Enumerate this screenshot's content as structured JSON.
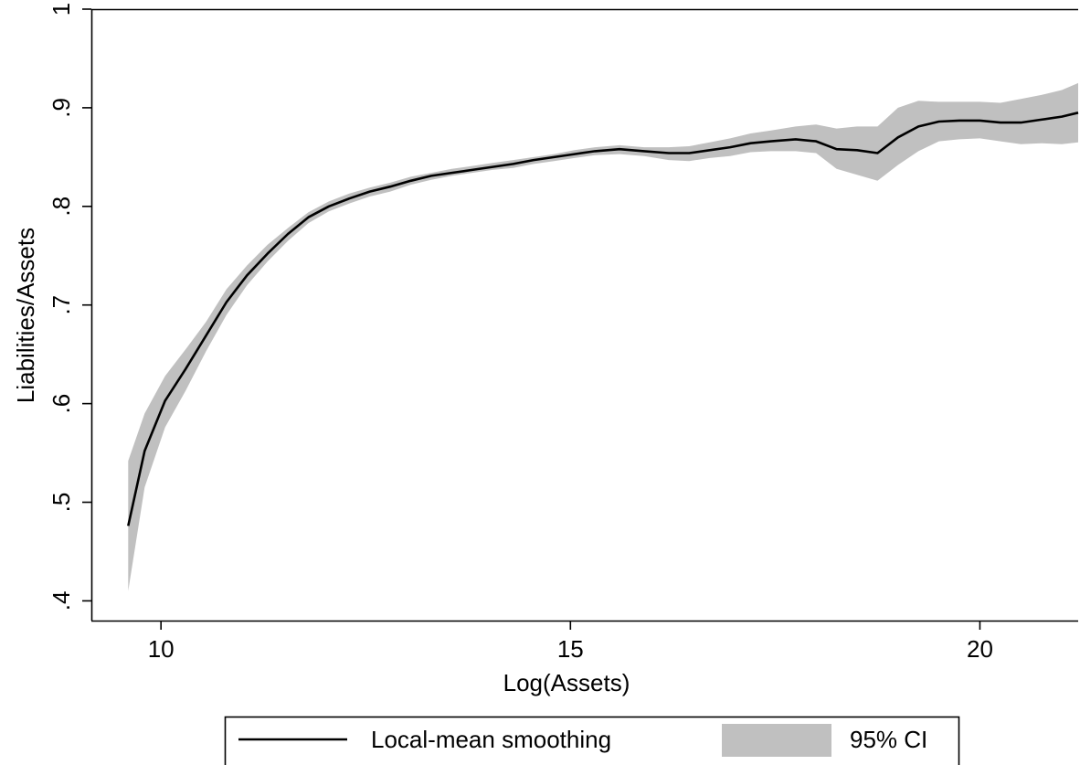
{
  "chart_data": {
    "type": "line",
    "xlabel": "Log(Assets)",
    "ylabel": "Liabilities/Assets",
    "xlim": [
      9.15,
      21.2
    ],
    "ylim": [
      0.38,
      1.0
    ],
    "x_ticks": [
      10,
      15,
      20
    ],
    "x_tick_labels": [
      "10",
      "15",
      "20"
    ],
    "y_ticks": [
      0.4,
      0.5,
      0.6,
      0.7,
      0.8,
      0.9,
      1.0
    ],
    "y_tick_labels": [
      ".4",
      ".5",
      ".6",
      ".7",
      ".8",
      ".9",
      "1"
    ],
    "grid": false,
    "legend_position": "bottom",
    "series": [
      {
        "name": "Local-mean smoothing",
        "kind": "line",
        "color": "#000000",
        "x": [
          9.6,
          9.8,
          10.05,
          10.3,
          10.55,
          10.8,
          11.05,
          11.3,
          11.55,
          11.8,
          12.05,
          12.3,
          12.55,
          12.8,
          13.05,
          13.3,
          13.55,
          13.8,
          14.05,
          14.3,
          14.55,
          14.8,
          15.05,
          15.3,
          15.6,
          15.9,
          16.2,
          16.45,
          16.7,
          16.95,
          17.2,
          17.45,
          17.75,
          18.0,
          18.25,
          18.5,
          18.75,
          19.0,
          19.25,
          19.5,
          19.75,
          20.0,
          20.25,
          20.5,
          20.75,
          21.0,
          21.2
        ],
        "y": [
          0.476,
          0.552,
          0.603,
          0.635,
          0.669,
          0.703,
          0.73,
          0.752,
          0.772,
          0.789,
          0.8,
          0.808,
          0.815,
          0.82,
          0.826,
          0.831,
          0.834,
          0.837,
          0.84,
          0.843,
          0.847,
          0.85,
          0.853,
          0.856,
          0.858,
          0.856,
          0.854,
          0.854,
          0.857,
          0.86,
          0.864,
          0.866,
          0.868,
          0.866,
          0.858,
          0.857,
          0.854,
          0.87,
          0.881,
          0.886,
          0.887,
          0.887,
          0.885,
          0.885,
          0.888,
          0.891,
          0.895
        ]
      },
      {
        "name": "95% CI",
        "kind": "band",
        "color": "#c0c0c0",
        "x": [
          9.6,
          9.8,
          10.05,
          10.3,
          10.55,
          10.8,
          11.05,
          11.3,
          11.55,
          11.8,
          12.05,
          12.3,
          12.55,
          12.8,
          13.05,
          13.3,
          13.55,
          13.8,
          14.05,
          14.3,
          14.55,
          14.8,
          15.05,
          15.3,
          15.6,
          15.9,
          16.2,
          16.45,
          16.7,
          16.95,
          17.2,
          17.45,
          17.75,
          18.0,
          18.25,
          18.5,
          18.75,
          19.0,
          19.25,
          19.5,
          19.75,
          20.0,
          20.25,
          20.5,
          20.75,
          21.0,
          21.2
        ],
        "upper": [
          0.542,
          0.59,
          0.628,
          0.655,
          0.683,
          0.716,
          0.74,
          0.761,
          0.778,
          0.794,
          0.805,
          0.813,
          0.819,
          0.824,
          0.83,
          0.834,
          0.838,
          0.841,
          0.844,
          0.847,
          0.85,
          0.853,
          0.857,
          0.86,
          0.862,
          0.86,
          0.86,
          0.861,
          0.865,
          0.869,
          0.874,
          0.877,
          0.881,
          0.883,
          0.879,
          0.881,
          0.881,
          0.9,
          0.907,
          0.906,
          0.906,
          0.906,
          0.905,
          0.909,
          0.913,
          0.918,
          0.925
        ],
        "lower": [
          0.41,
          0.515,
          0.576,
          0.613,
          0.653,
          0.69,
          0.72,
          0.744,
          0.765,
          0.783,
          0.795,
          0.803,
          0.81,
          0.815,
          0.822,
          0.827,
          0.831,
          0.834,
          0.837,
          0.839,
          0.843,
          0.846,
          0.849,
          0.852,
          0.853,
          0.851,
          0.847,
          0.846,
          0.849,
          0.851,
          0.855,
          0.856,
          0.856,
          0.854,
          0.838,
          0.832,
          0.826,
          0.842,
          0.856,
          0.866,
          0.868,
          0.869,
          0.866,
          0.863,
          0.864,
          0.863,
          0.865
        ]
      }
    ]
  }
}
